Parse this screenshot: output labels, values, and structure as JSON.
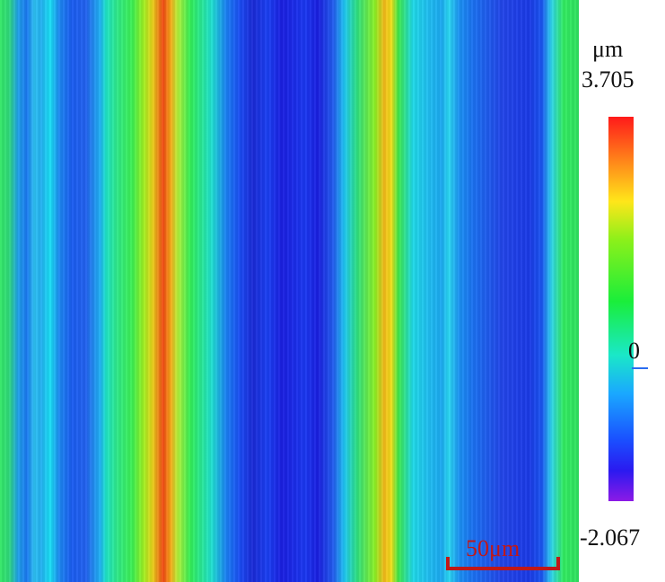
{
  "colorbar": {
    "unit": "μm",
    "max": "3.705",
    "zero": "0",
    "min": "-2.067",
    "colors": [
      "#ff1a1a",
      "#ff8a1a",
      "#ffe61a",
      "#8cf01a",
      "#1aee3a",
      "#1ae8c8",
      "#1aa8ff",
      "#1a50ff",
      "#2a1af0",
      "#8c1ae6"
    ]
  },
  "scale_bar": {
    "label": "50μm",
    "color": "#c01818"
  }
}
